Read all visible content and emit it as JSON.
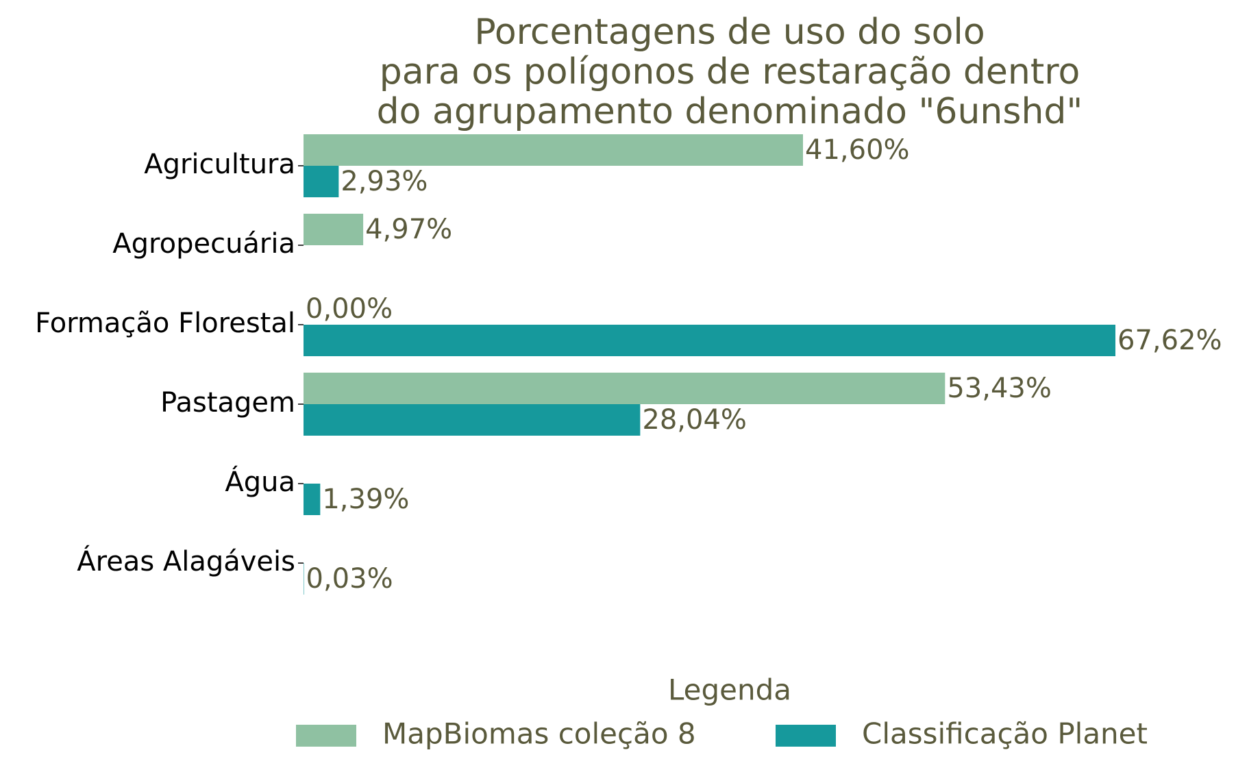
{
  "chart_data": {
    "type": "bar",
    "orientation": "horizontal",
    "title_lines": [
      "Porcentagens de uso do solo",
      "para os polígonos de restaração dentro",
      "do agrupamento denominado \"6unshd\""
    ],
    "categories": [
      "Agricultura",
      "Agropecuária",
      "Formação Florestal",
      "Pastagem",
      "Água",
      "Áreas Alagáveis"
    ],
    "series": [
      {
        "name": "MapBiomas coleção 8",
        "color": "#8fc1a2",
        "values": [
          41.6,
          4.97,
          0.0,
          53.43,
          null,
          null
        ],
        "labels": [
          "41,60%",
          "4,97%",
          "0,00%",
          "53,43%",
          null,
          null
        ]
      },
      {
        "name": "Classificação Planet",
        "color": "#16999c",
        "values": [
          2.93,
          null,
          67.62,
          28.04,
          1.39,
          0.03
        ],
        "labels": [
          "2,93%",
          null,
          "67,62%",
          "28,04%",
          "1,39%",
          "0,03%"
        ]
      }
    ],
    "xlim": [
      0,
      67.62
    ],
    "axis": {
      "x_visible": false,
      "y_visible": true
    },
    "grid": false,
    "legend": {
      "title": "Legenda",
      "placement": "bottom-center"
    },
    "colors": {
      "title_text": "#5a5a3c",
      "label_text": "#5a5a3c",
      "category_text": "#000000"
    }
  }
}
